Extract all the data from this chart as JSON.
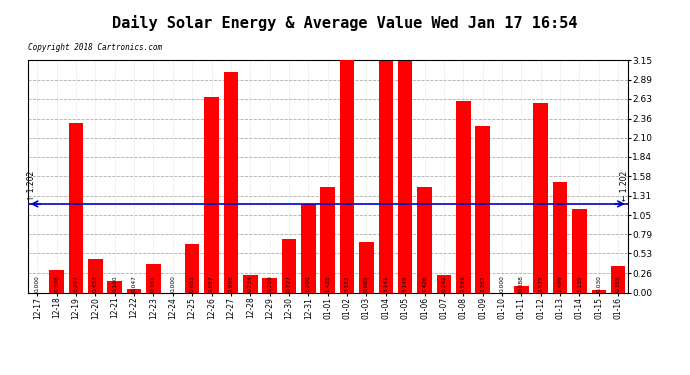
{
  "title": "Daily Solar Energy & Average Value Wed Jan 17 16:54",
  "copyright": "Copyright 2018 Cartronics.com",
  "categories": [
    "12-17",
    "12-18",
    "12-19",
    "12-20",
    "12-21",
    "12-22",
    "12-23",
    "12-24",
    "12-25",
    "12-26",
    "12-27",
    "12-28",
    "12-29",
    "12-30",
    "12-31",
    "01-01",
    "01-02",
    "01-03",
    "01-04",
    "01-05",
    "01-06",
    "01-07",
    "01-08",
    "01-09",
    "01-10",
    "01-11",
    "01-12",
    "01-13",
    "01-14",
    "01-15",
    "01-16"
  ],
  "values": [
    0.0,
    0.308,
    2.297,
    0.453,
    0.16,
    0.047,
    0.381,
    0.0,
    0.653,
    2.657,
    2.998,
    0.234,
    0.2,
    0.727,
    1.2,
    1.425,
    3.152,
    0.685,
    3.141,
    3.145,
    1.426,
    0.242,
    2.595,
    2.262,
    0.0,
    0.088,
    2.575,
    1.499,
    1.135,
    0.03,
    0.355
  ],
  "average_value": 1.202,
  "bar_color": "#ff0000",
  "average_line_color": "#0000cd",
  "ylim": [
    0.0,
    3.15
  ],
  "yticks": [
    0.0,
    0.26,
    0.53,
    0.79,
    1.05,
    1.31,
    1.58,
    1.84,
    2.1,
    2.36,
    2.63,
    2.89,
    3.15
  ],
  "background_color": "#ffffff",
  "grid_color": "#aaaaaa",
  "title_fontsize": 11,
  "legend_avg_bg": "#00008b",
  "legend_daily_bg": "#cc0000"
}
